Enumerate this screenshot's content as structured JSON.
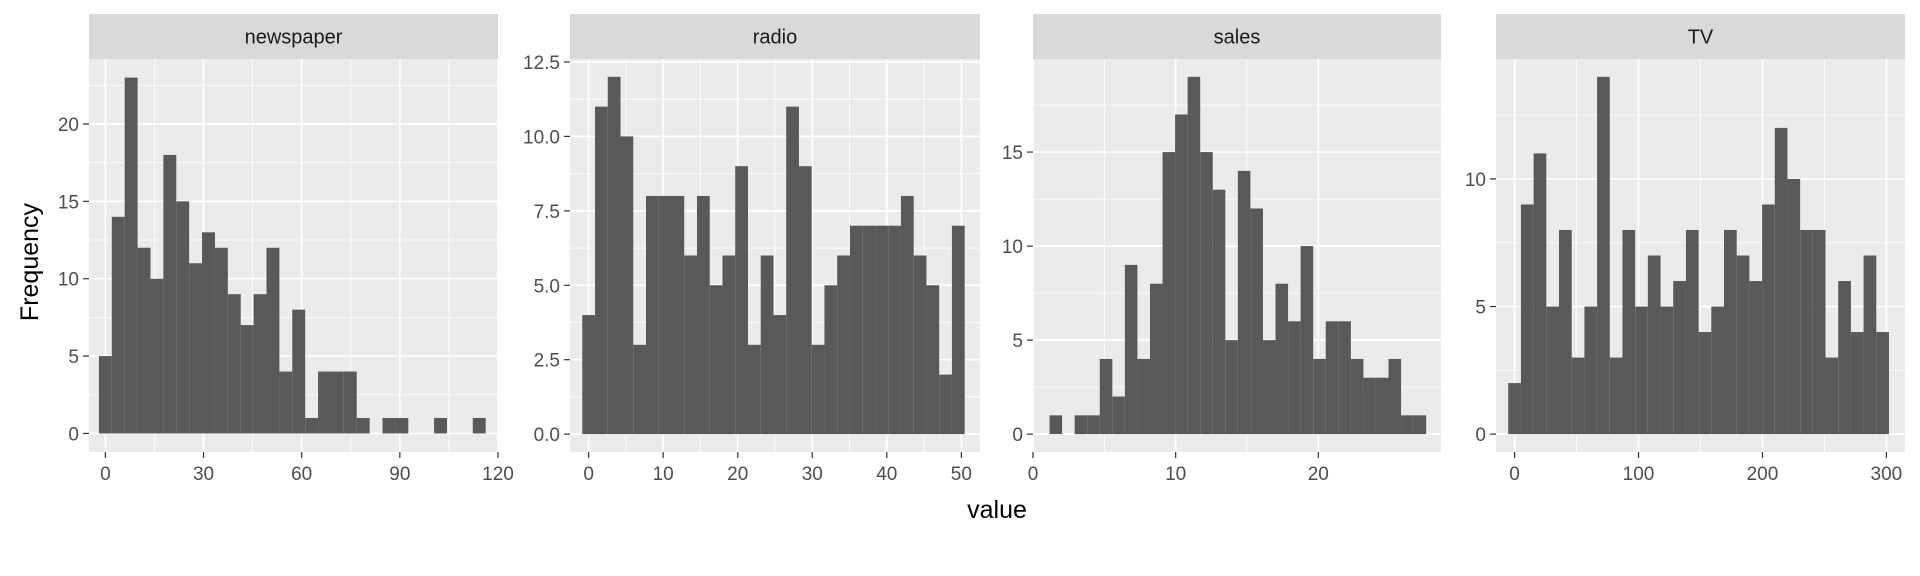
{
  "chart_data": {
    "type": "bar",
    "xlabel": "value",
    "ylabel": "Frequency",
    "colors": {
      "bar": "#595959",
      "panel_bg": "#ebebeb",
      "strip_bg": "#d9d9d9",
      "grid": "#ffffff"
    },
    "grid": true,
    "panels": [
      {
        "title": "newspaper",
        "xlim": [
          -5,
          120
        ],
        "ylim": [
          -1.2,
          24.2
        ],
        "xticks": [
          0,
          30,
          60,
          90,
          120
        ],
        "xtick_labels": [
          "0",
          "30",
          "60",
          "90",
          "120"
        ],
        "yticks": [
          0,
          5,
          10,
          15,
          20
        ],
        "ytick_labels": [
          "0",
          "5",
          "10",
          "15",
          "20"
        ],
        "bin_width": 3.94,
        "bin_centers": [
          0,
          3.94,
          7.88,
          11.82,
          15.76,
          19.7,
          23.64,
          27.58,
          31.52,
          35.46,
          39.4,
          43.34,
          47.28,
          51.22,
          55.16,
          59.1,
          63.04,
          66.98,
          70.92,
          74.86,
          78.8,
          82.74,
          86.68,
          90.62,
          94.56,
          98.5,
          102.44,
          106.38,
          110.32,
          114.26
        ],
        "values": [
          5,
          14,
          23,
          12,
          10,
          18,
          15,
          11,
          13,
          12,
          9,
          7,
          9,
          12,
          4,
          8,
          1,
          4,
          4,
          4,
          1,
          0,
          1,
          1,
          0,
          0,
          1,
          0,
          0,
          1
        ]
      },
      {
        "title": "radio",
        "xlim": [
          -2.5,
          52.5
        ],
        "ylim": [
          -0.6,
          12.6
        ],
        "xticks": [
          0,
          10,
          20,
          30,
          40,
          50
        ],
        "xtick_labels": [
          "0",
          "10",
          "20",
          "30",
          "40",
          "50"
        ],
        "yticks": [
          0,
          2.5,
          5,
          7.5,
          10,
          12.5
        ],
        "ytick_labels": [
          "0.0",
          "2.5",
          "5.0",
          "7.5",
          "10.0",
          "12.5"
        ],
        "bin_width": 1.71,
        "bin_centers": [
          0,
          1.71,
          3.42,
          5.13,
          6.84,
          8.55,
          10.26,
          11.97,
          13.68,
          15.39,
          17.1,
          18.81,
          20.52,
          22.23,
          23.94,
          25.65,
          27.36,
          29.07,
          30.78,
          32.49,
          34.2,
          35.91,
          37.62,
          39.33,
          41.04,
          42.75,
          44.46,
          46.17,
          47.88,
          49.59
        ],
        "values": [
          4,
          11,
          12,
          10,
          3,
          8,
          8,
          8,
          6,
          8,
          5,
          6,
          9,
          3,
          6,
          4,
          11,
          9,
          3,
          5,
          6,
          7,
          7,
          7,
          7,
          8,
          6,
          5,
          2,
          7
        ]
      },
      {
        "title": "sales",
        "xlim": [
          0,
          28.6
        ],
        "ylim": [
          -0.95,
          19.95
        ],
        "xticks": [
          0,
          10,
          20
        ],
        "xtick_labels": [
          "0",
          "10",
          "20"
        ],
        "yticks": [
          0,
          5,
          10,
          15
        ],
        "ytick_labels": [
          "0",
          "5",
          "10",
          "15"
        ],
        "bin_width": 0.88,
        "bin_centers": [
          1.6,
          2.48,
          3.36,
          4.24,
          5.12,
          6,
          6.88,
          7.76,
          8.64,
          9.52,
          10.4,
          11.28,
          12.16,
          13.04,
          13.92,
          14.8,
          15.68,
          16.56,
          17.44,
          18.32,
          19.2,
          20.08,
          20.96,
          21.84,
          22.72,
          23.6,
          24.48,
          25.36,
          26.24,
          27.12
        ],
        "values": [
          1,
          0,
          1,
          1,
          4,
          2,
          9,
          4,
          8,
          15,
          17,
          19,
          15,
          13,
          5,
          14,
          12,
          5,
          8,
          6,
          10,
          4,
          6,
          6,
          4,
          3,
          3,
          4,
          1,
          1
        ]
      },
      {
        "title": "TV",
        "xlim": [
          -15,
          315
        ],
        "ylim": [
          -0.7,
          14.7
        ],
        "xticks": [
          0,
          100,
          200,
          300
        ],
        "xtick_labels": [
          "0",
          "100",
          "200",
          "300"
        ],
        "yticks": [
          0,
          5,
          10
        ],
        "ytick_labels": [
          "0",
          "5",
          "10"
        ],
        "bin_width": 10.24,
        "bin_centers": [
          0,
          10.24,
          20.48,
          30.72,
          40.96,
          51.2,
          61.44,
          71.68,
          81.92,
          92.16,
          102.4,
          112.64,
          122.88,
          133.12,
          143.36,
          153.6,
          163.84,
          174.08,
          184.32,
          194.56,
          204.8,
          215.04,
          225.28,
          235.52,
          245.76,
          256,
          266.24,
          276.48,
          286.72,
          296.96
        ],
        "values": [
          2,
          9,
          11,
          5,
          8,
          3,
          5,
          14,
          3,
          8,
          5,
          7,
          5,
          6,
          8,
          4,
          5,
          8,
          7,
          6,
          9,
          12,
          10,
          8,
          8,
          3,
          6,
          4,
          7,
          4
        ]
      }
    ]
  }
}
